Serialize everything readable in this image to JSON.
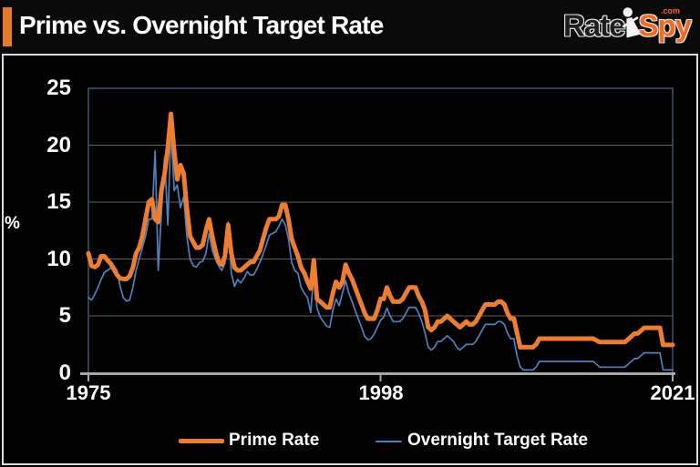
{
  "header": {
    "title": "Prime vs. Overnight Target Rate",
    "logo": {
      "rate": "Rate",
      "spy": "Spy",
      "com": ".com"
    }
  },
  "colors": {
    "background": "#000000",
    "accent_orange": "#E87722",
    "logo_orange": "#F26A21",
    "prime_line": "#ED7D31",
    "overnight_line": "#4F81BD",
    "grid": "#606060",
    "plot_border": "#44546A",
    "axis": "#A6A6A6",
    "frame": "#DCDCDC",
    "text": "#FFFFFF"
  },
  "chart_data": {
    "type": "line",
    "title": "Prime vs. Overnight Target Rate",
    "xlabel": "",
    "ylabel": "%",
    "xlim": [
      1975,
      2021
    ],
    "ylim": [
      0,
      25
    ],
    "grid": true,
    "legend_position": "bottom",
    "y_ticks": [
      25,
      20,
      15,
      10,
      5,
      0
    ],
    "y_tick_labels": [
      "25",
      "20",
      "15",
      "10",
      "5",
      "0"
    ],
    "x_ticks": [
      1975,
      1998,
      2021
    ],
    "x_tick_labels": [
      "1975",
      "1998",
      "2021"
    ],
    "x_start": 1975,
    "x_step": 0.25,
    "series": [
      {
        "name": "Prime Rate",
        "color": "#ED7D31",
        "width": 5,
        "values": [
          10.5,
          9.4,
          9.3,
          9.5,
          10.25,
          10.25,
          9.9,
          9.6,
          9.1,
          8.6,
          8.3,
          8.25,
          8.25,
          8.5,
          9.25,
          10.5,
          11.0,
          12.0,
          13.5,
          15.0,
          15.25,
          13.5,
          13.25,
          16.0,
          17.5,
          19.75,
          22.75,
          19.5,
          17.0,
          18.25,
          17.5,
          14.5,
          12.0,
          11.5,
          11.0,
          11.0,
          11.25,
          12.5,
          13.5,
          12.0,
          10.75,
          9.75,
          9.5,
          10.25,
          13.0,
          10.5,
          9.25,
          9.0,
          9.0,
          9.25,
          9.5,
          9.75,
          9.75,
          10.25,
          10.75,
          11.75,
          12.75,
          13.5,
          13.5,
          13.5,
          13.75,
          14.75,
          14.75,
          13.5,
          11.75,
          11.0,
          10.25,
          9.25,
          8.75,
          8.0,
          7.4,
          9.9,
          6.5,
          6.25,
          6.0,
          5.75,
          5.75,
          7.0,
          8.0,
          7.5,
          8.0,
          9.5,
          8.75,
          8.25,
          7.5,
          6.75,
          6.0,
          5.25,
          4.75,
          4.75,
          4.75,
          5.5,
          6.5,
          6.5,
          7.5,
          6.75,
          6.25,
          6.25,
          6.25,
          6.5,
          7.0,
          7.5,
          7.5,
          7.5,
          6.75,
          6.25,
          5.5,
          4.0,
          3.75,
          4.0,
          4.5,
          4.5,
          4.75,
          5.0,
          4.75,
          4.5,
          4.25,
          4.0,
          4.25,
          4.5,
          4.25,
          4.25,
          4.5,
          5.0,
          5.5,
          6.0,
          6.0,
          6.0,
          6.0,
          6.25,
          6.25,
          6.0,
          5.25,
          4.75,
          4.75,
          3.5,
          2.25,
          2.25,
          2.25,
          2.25,
          2.25,
          2.5,
          3.0,
          3.0,
          3.0,
          3.0,
          3.0,
          3.0,
          3.0,
          3.0,
          3.0,
          3.0,
          3.0,
          3.0,
          3.0,
          3.0,
          3.0,
          3.0,
          3.0,
          3.0,
          2.85,
          2.7,
          2.7,
          2.7,
          2.7,
          2.7,
          2.7,
          2.7,
          2.7,
          2.7,
          2.95,
          3.2,
          3.45,
          3.45,
          3.7,
          3.95,
          3.95,
          3.95,
          3.95,
          3.95,
          3.95,
          2.45,
          2.45,
          2.45,
          2.45
        ]
      },
      {
        "name": "Overnight Target Rate",
        "color": "#4F81BD",
        "width": 1.7,
        "values": [
          6.6,
          6.4,
          6.9,
          7.5,
          8.2,
          8.8,
          9.0,
          9.2,
          9.4,
          9.0,
          7.6,
          6.6,
          6.3,
          6.4,
          7.5,
          9.0,
          10.0,
          11.0,
          12.0,
          13.5,
          13.5,
          19.5,
          9.0,
          14.0,
          19.0,
          13.0,
          21.5,
          16.0,
          16.5,
          14.5,
          15.5,
          12.0,
          10.0,
          9.4,
          9.3,
          9.7,
          9.8,
          10.5,
          12.25,
          10.75,
          10.0,
          9.4,
          9.0,
          9.6,
          13.25,
          8.75,
          7.6,
          8.2,
          7.9,
          8.3,
          8.9,
          8.6,
          8.6,
          9.1,
          9.7,
          10.4,
          11.2,
          12.1,
          12.25,
          12.4,
          12.9,
          13.5,
          13.0,
          11.8,
          9.7,
          9.0,
          8.75,
          7.5,
          7.0,
          6.6,
          5.3,
          8.7,
          5.7,
          4.9,
          4.5,
          4.1,
          4.0,
          5.5,
          6.5,
          5.9,
          7.0,
          8.1,
          7.0,
          6.3,
          5.5,
          4.75,
          4.0,
          3.2,
          2.9,
          3.0,
          3.4,
          4.0,
          4.6,
          4.9,
          5.7,
          5.0,
          4.5,
          4.5,
          4.5,
          4.75,
          5.25,
          5.75,
          5.75,
          5.75,
          5.25,
          4.5,
          3.5,
          2.25,
          2.0,
          2.25,
          2.75,
          2.75,
          3.0,
          3.25,
          3.0,
          2.75,
          2.25,
          2.0,
          2.25,
          2.5,
          2.5,
          2.5,
          2.75,
          3.25,
          3.75,
          4.25,
          4.25,
          4.25,
          4.25,
          4.5,
          4.5,
          4.25,
          3.5,
          3.0,
          3.0,
          1.5,
          0.5,
          0.25,
          0.25,
          0.25,
          0.25,
          0.5,
          1.0,
          1.0,
          1.0,
          1.0,
          1.0,
          1.0,
          1.0,
          1.0,
          1.0,
          1.0,
          1.0,
          1.0,
          1.0,
          1.0,
          1.0,
          1.0,
          1.0,
          1.0,
          0.75,
          0.5,
          0.5,
          0.5,
          0.5,
          0.5,
          0.5,
          0.5,
          0.5,
          0.5,
          0.75,
          1.0,
          1.25,
          1.25,
          1.5,
          1.75,
          1.75,
          1.75,
          1.75,
          1.75,
          1.75,
          0.25,
          0.25,
          0.25,
          0.25
        ]
      }
    ]
  },
  "legend": {
    "items": [
      {
        "label": "Prime Rate"
      },
      {
        "label": "Overnight Target Rate"
      }
    ]
  }
}
